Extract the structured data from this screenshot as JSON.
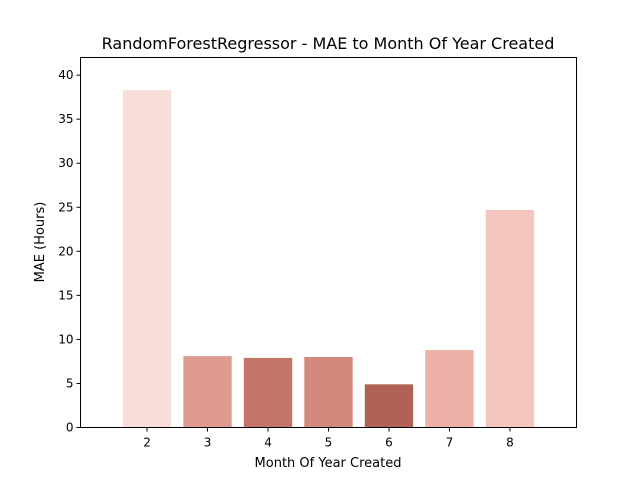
{
  "chart_data": {
    "type": "bar",
    "title": "RandomForestRegressor - MAE to Month Of Year Created",
    "xlabel": "Month Of Year Created",
    "ylabel": "MAE (Hours)",
    "categories": [
      "2",
      "3",
      "4",
      "5",
      "6",
      "7",
      "8"
    ],
    "values": [
      38.3,
      8.1,
      7.9,
      8.0,
      4.9,
      8.8,
      24.7
    ],
    "colors": [
      "#f9ddd8",
      "#e09b91",
      "#c47569",
      "#d38a7e",
      "#b06254",
      "#eeb1a7",
      "#f5c6bf"
    ],
    "ylim": [
      0,
      42
    ],
    "yticks": [
      0,
      5,
      10,
      15,
      20,
      25,
      30,
      35,
      40
    ],
    "grid": false,
    "legend": "none"
  }
}
